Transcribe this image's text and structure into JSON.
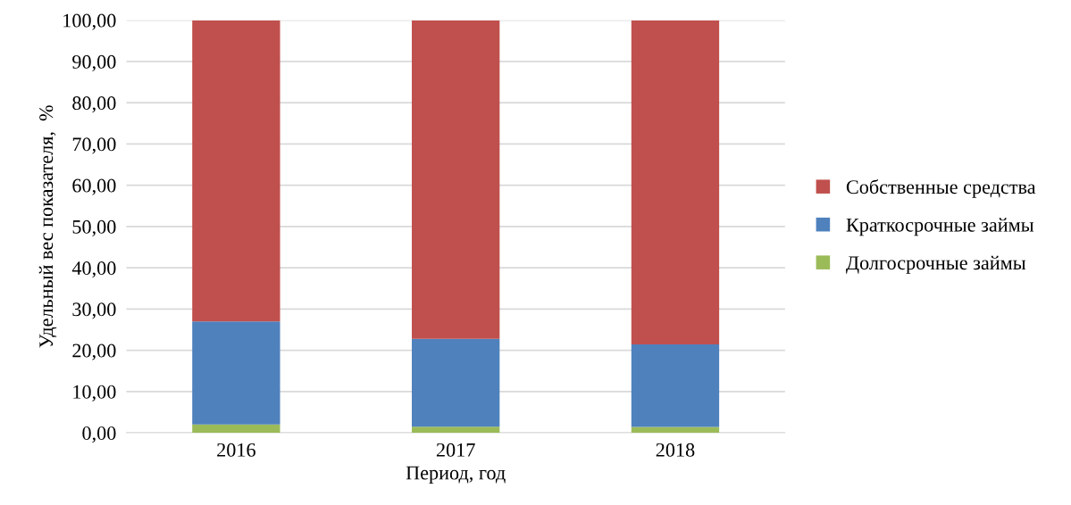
{
  "chart_data": {
    "type": "bar",
    "stacked": true,
    "xlabel": "Период, год",
    "ylabel": "Удельный вес показателя,  %",
    "categories": [
      "2016",
      "2017",
      "2018"
    ],
    "series": [
      {
        "name": "Долгосрочные займы",
        "color": "#9bbb59",
        "values": [
          2.0,
          1.5,
          1.4
        ]
      },
      {
        "name": "Краткосрочные займы",
        "color": "#4f81bd",
        "values": [
          25.0,
          21.3,
          20.0
        ]
      },
      {
        "name": "Собственные средства",
        "color": "#c0504d",
        "values": [
          73.0,
          77.2,
          78.6
        ]
      }
    ],
    "ylim": [
      0,
      100
    ],
    "yticks": [
      {
        "value": 0,
        "label": "0,00"
      },
      {
        "value": 10,
        "label": "10,00"
      },
      {
        "value": 20,
        "label": "20,00"
      },
      {
        "value": 30,
        "label": "30,00"
      },
      {
        "value": 40,
        "label": "40,00"
      },
      {
        "value": 50,
        "label": "50,00"
      },
      {
        "value": 60,
        "label": "60,00"
      },
      {
        "value": 70,
        "label": "70,00"
      },
      {
        "value": 80,
        "label": "80,00"
      },
      {
        "value": 90,
        "label": "90,00"
      },
      {
        "value": 100,
        "label": "100,00"
      }
    ],
    "grid": "y",
    "legend": "right"
  }
}
